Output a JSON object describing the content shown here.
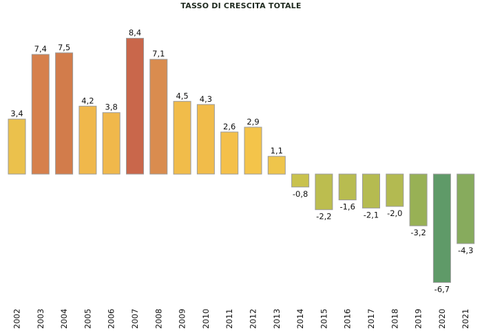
{
  "chart_data": {
    "type": "bar",
    "title": "TASSO DI CRESCITA TOTALE",
    "xlabel": "",
    "ylabel": "",
    "categories": [
      "2002",
      "2003",
      "2004",
      "2005",
      "2006",
      "2007",
      "2008",
      "2009",
      "2010",
      "2011",
      "2012",
      "2013",
      "2014",
      "2015",
      "2016",
      "2017",
      "2018",
      "2019",
      "2020",
      "2021"
    ],
    "values": [
      3.4,
      7.4,
      7.5,
      4.2,
      3.8,
      8.4,
      7.1,
      4.5,
      4.3,
      2.6,
      2.9,
      1.1,
      -0.8,
      -2.2,
      -1.6,
      -2.1,
      -2.0,
      -3.2,
      -6.7,
      -4.3
    ],
    "value_labels": [
      "3,4",
      "7,4",
      "7,5",
      "4,2",
      "3,8",
      "8,4",
      "7,1",
      "4,5",
      "4,3",
      "2,6",
      "2,9",
      "1,1",
      "-0,8",
      "-2,2",
      "-1,6",
      "-2,1",
      "-2,0",
      "-3,2",
      "-6,7",
      "-4,3"
    ],
    "bar_colors": [
      "#ebc14c",
      "#d6804c",
      "#d27c4b",
      "#f0b84b",
      "#f0b84b",
      "#c9674b",
      "#d98c4f",
      "#f1bc4a",
      "#f1bc4a",
      "#f4c04a",
      "#f4c44a",
      "#efc54b",
      "#c9c24d",
      "#bcbd4f",
      "#b8bc50",
      "#b5bb50",
      "#b3ba51",
      "#98b155",
      "#5f9a68",
      "#87ab5d"
    ],
    "bar_outline": "#9a9a9a",
    "grid": false,
    "legend": "none"
  }
}
